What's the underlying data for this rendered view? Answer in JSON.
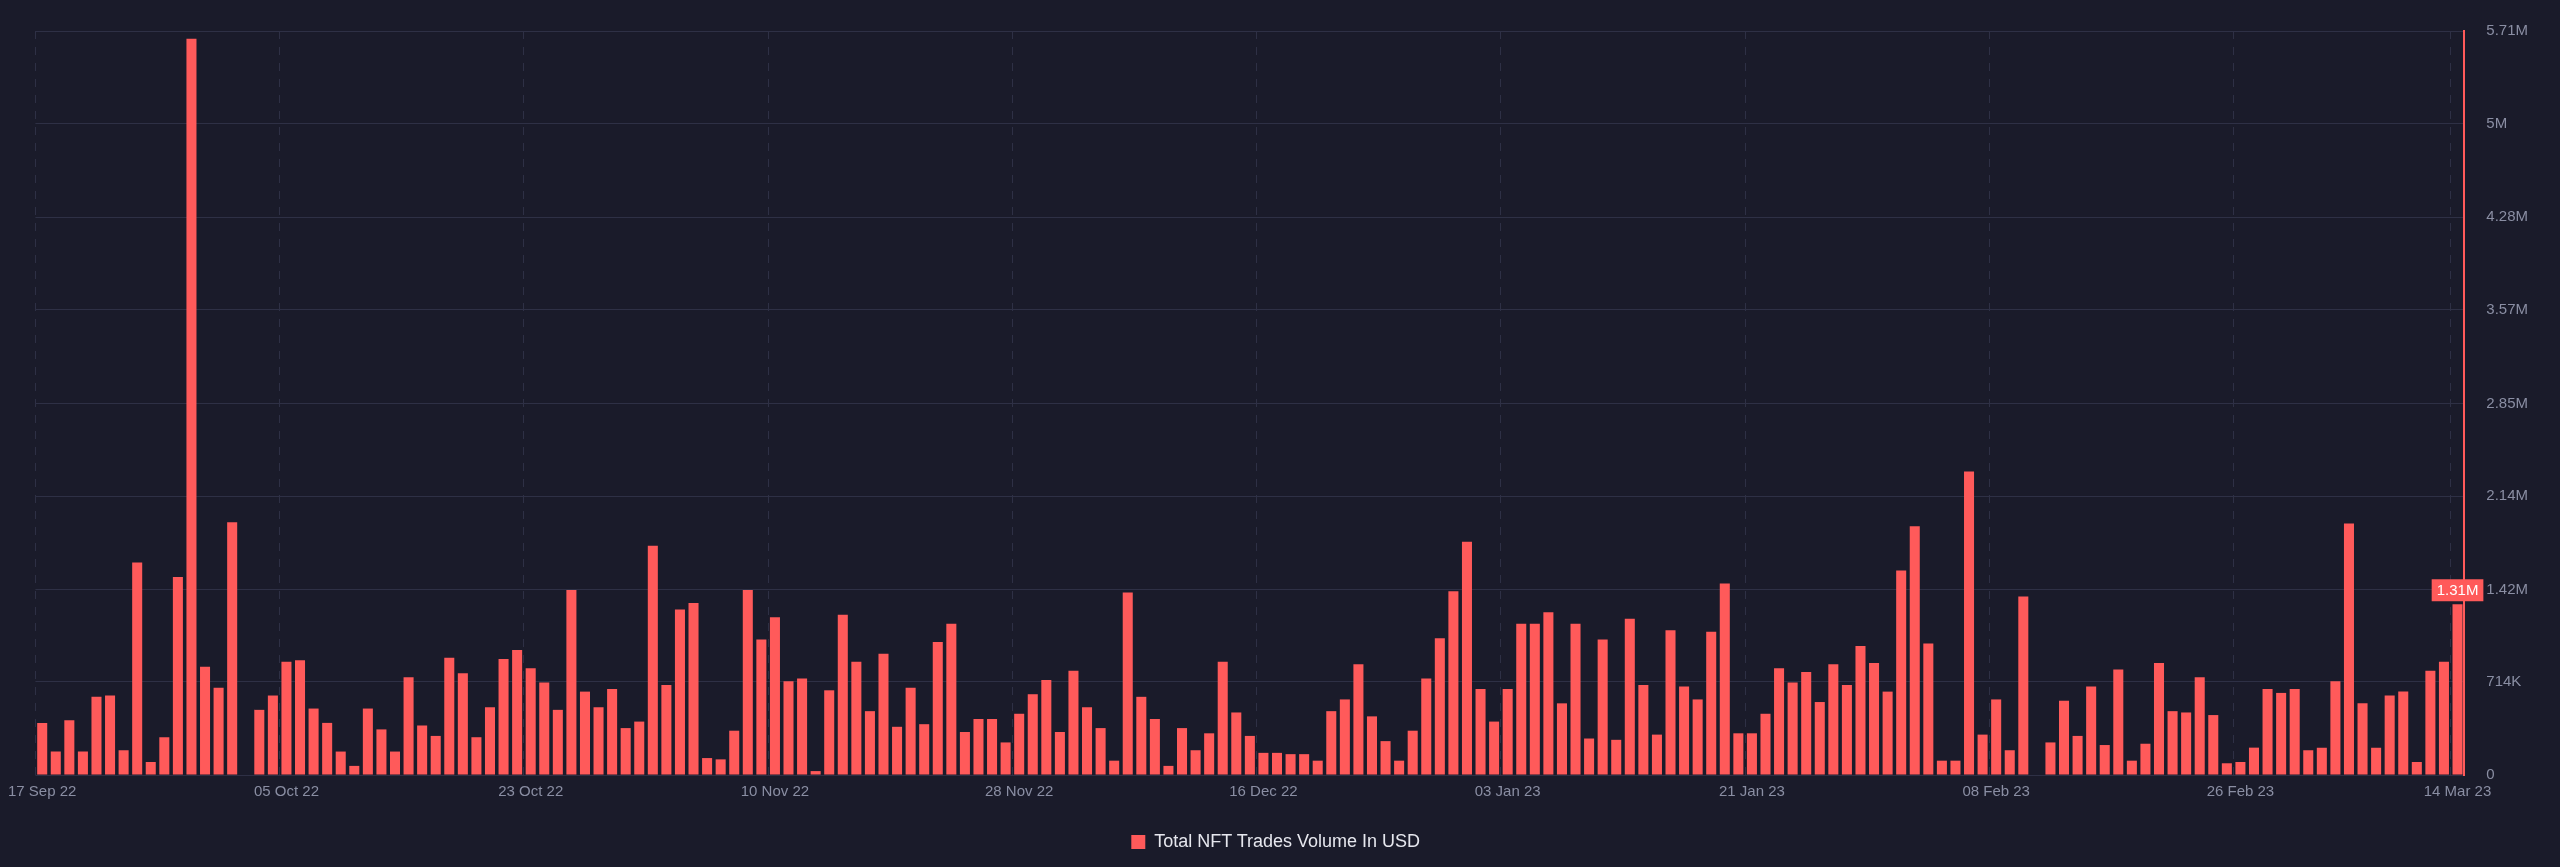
{
  "chart_data": {
    "type": "bar",
    "categories": [
      "17 Sep 22",
      null,
      null,
      null,
      null,
      null,
      null,
      null,
      null,
      null,
      null,
      null,
      null,
      null,
      null,
      null,
      null,
      null,
      "05 Oct 22",
      null,
      null,
      null,
      null,
      null,
      null,
      null,
      null,
      null,
      null,
      null,
      null,
      null,
      null,
      null,
      null,
      null,
      "23 Oct 22",
      null,
      null,
      null,
      null,
      null,
      null,
      null,
      null,
      null,
      null,
      null,
      null,
      null,
      null,
      null,
      null,
      null,
      "10 Nov 22",
      null,
      null,
      null,
      null,
      null,
      null,
      null,
      null,
      null,
      null,
      null,
      null,
      null,
      null,
      null,
      null,
      null,
      "28 Nov 22",
      null,
      null,
      null,
      null,
      null,
      null,
      null,
      null,
      null,
      null,
      null,
      null,
      null,
      null,
      null,
      null,
      null,
      "16 Dec 22",
      null,
      null,
      null,
      null,
      null,
      null,
      null,
      null,
      null,
      null,
      null,
      null,
      null,
      null,
      null,
      null,
      null,
      "03 Jan 23",
      null,
      null,
      null,
      null,
      null,
      null,
      null,
      null,
      null,
      null,
      null,
      null,
      null,
      null,
      null,
      null,
      null,
      "21 Jan 23",
      null,
      null,
      null,
      null,
      null,
      null,
      null,
      null,
      null,
      null,
      null,
      null,
      null,
      null,
      null,
      null,
      null,
      "08 Feb 23",
      null,
      null,
      null,
      null,
      null,
      null,
      null,
      null,
      null,
      null,
      null,
      null,
      null,
      null,
      null,
      null,
      null,
      "26 Feb 23",
      null,
      null,
      null,
      null,
      null,
      null,
      null,
      null,
      null,
      null,
      null,
      null,
      null,
      null,
      null,
      "14 Mar 23"
    ],
    "series": [
      {
        "name": "Total NFT Trades Volume In USD",
        "color": "#ff5a5a",
        "values": [
          400000,
          180000,
          420000,
          180000,
          600000,
          610000,
          190000,
          1630000,
          100000,
          290000,
          1520000,
          5650000,
          830000,
          670000,
          1940000,
          null,
          500000,
          610000,
          870000,
          880000,
          510000,
          400000,
          180000,
          70000,
          510000,
          350000,
          180000,
          750000,
          380000,
          300000,
          900000,
          780000,
          290000,
          520000,
          890000,
          960000,
          820000,
          710000,
          500000,
          1420000,
          640000,
          520000,
          660000,
          360000,
          410000,
          1760000,
          690000,
          1270000,
          1320000,
          130000,
          120000,
          340000,
          1420000,
          1040000,
          1210000,
          720000,
          740000,
          30000,
          650000,
          1230000,
          870000,
          490000,
          930000,
          370000,
          670000,
          390000,
          1020000,
          1160000,
          330000,
          430000,
          430000,
          250000,
          470000,
          620000,
          730000,
          330000,
          800000,
          520000,
          360000,
          110000,
          1400000,
          600000,
          430000,
          70000,
          360000,
          190000,
          320000,
          870000,
          480000,
          300000,
          170000,
          170000,
          160000,
          160000,
          110000,
          490000,
          580000,
          850000,
          450000,
          260000,
          110000,
          340000,
          740000,
          1050000,
          1410000,
          1790000,
          660000,
          410000,
          660000,
          1160000,
          1160000,
          1250000,
          550000,
          1160000,
          280000,
          1040000,
          270000,
          1200000,
          690000,
          310000,
          1110000,
          680000,
          580000,
          1100000,
          1470000,
          320000,
          320000,
          470000,
          820000,
          710000,
          790000,
          560000,
          850000,
          690000,
          990000,
          860000,
          640000,
          1570000,
          1910000,
          1010000,
          110000,
          110000,
          2330000,
          310000,
          580000,
          190000,
          1370000,
          null,
          250000,
          570000,
          300000,
          680000,
          230000,
          810000,
          110000,
          240000,
          860000,
          490000,
          480000,
          750000,
          460000,
          90000,
          100000,
          210000,
          660000,
          630000,
          660000,
          190000,
          210000,
          720000,
          1930000,
          550000,
          210000,
          610000,
          640000,
          100000,
          800000,
          870000,
          1310000
        ],
        "value_labels": [
          null,
          null,
          null,
          null,
          null,
          null,
          null,
          null,
          null,
          null,
          null,
          null,
          null,
          null,
          null,
          null,
          null,
          null,
          null,
          null,
          null,
          null,
          null,
          null,
          null,
          null,
          null,
          null,
          null,
          null,
          null,
          null,
          null,
          null,
          null,
          null,
          null,
          null,
          null,
          null,
          null,
          null,
          null,
          null,
          null,
          null,
          null,
          null,
          null,
          null,
          null,
          null,
          null,
          null,
          null,
          null,
          null,
          null,
          null,
          null,
          null,
          null,
          null,
          null,
          null,
          null,
          null,
          null,
          null,
          null,
          null,
          null,
          null,
          null,
          null,
          null,
          null,
          null,
          null,
          null,
          null,
          null,
          null,
          null,
          null,
          null,
          null,
          null,
          null,
          null,
          null,
          null,
          null,
          null,
          null,
          null,
          null,
          null,
          null,
          null,
          null,
          null,
          null,
          null,
          null,
          null,
          null,
          null,
          null,
          null,
          null,
          null,
          null,
          null,
          null,
          null,
          null,
          null,
          null,
          null,
          null,
          null,
          null,
          null,
          null,
          null,
          null,
          null,
          null,
          null,
          null,
          null,
          null,
          null,
          null,
          null,
          null,
          null,
          null,
          null,
          null,
          null,
          null,
          null,
          null,
          null,
          null,
          null,
          null,
          null,
          null,
          null,
          null,
          null,
          null,
          null,
          null,
          null,
          null,
          null,
          null,
          null,
          null,
          null,
          null,
          null,
          null,
          null,
          null,
          null,
          null,
          null,
          null,
          null,
          null,
          null,
          null,
          null,
          "1.31M"
        ]
      }
    ],
    "ylim": [
      0,
      5710000
    ],
    "yticks": [
      0,
      {
        "value": 714000,
        "label": "714K"
      },
      {
        "value": 1420000,
        "label": "1.42M"
      },
      {
        "value": 2140000,
        "label": "2.14M"
      },
      {
        "value": 2850000,
        "label": "2.85M"
      },
      {
        "value": 3570000,
        "label": "3.57M"
      },
      {
        "value": 4280000,
        "label": "4.28M"
      },
      {
        "value": 5000000,
        "label": "5M"
      },
      {
        "value": 5710000,
        "label": "5.71M"
      }
    ],
    "grid": true,
    "legend": "bottom"
  }
}
